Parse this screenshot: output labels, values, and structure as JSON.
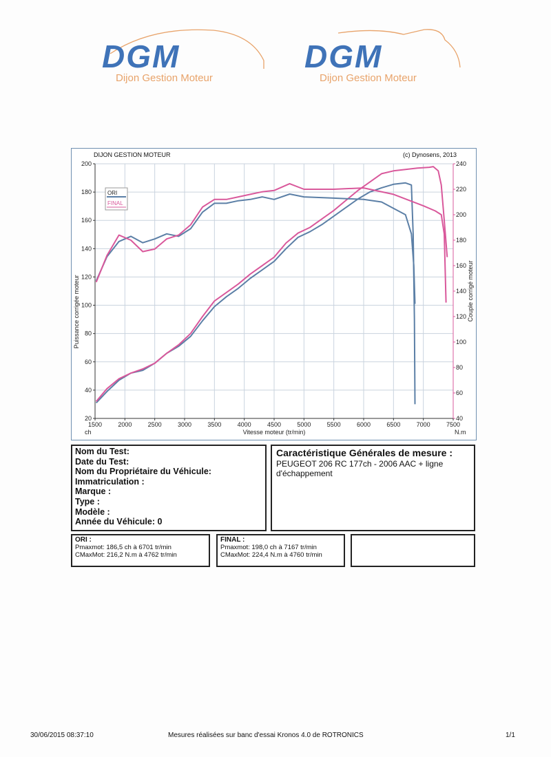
{
  "logos": [
    {
      "mark": "DGM",
      "tagline": "Dijon Gestion Moteur"
    },
    {
      "mark": "DGM",
      "tagline": "Dijon Gestion Moteur"
    }
  ],
  "colors": {
    "ori": "#5b7fa6",
    "final": "#d9589b",
    "logo_blue": "#3f73b8",
    "logo_orange": "#e8a36a",
    "grid": "#c9d3de"
  },
  "header": {
    "company": "DIJON GESTION MOTEUR",
    "copyright": "(c) Dynosens, 2013"
  },
  "chart_data": {
    "type": "line",
    "x_label": "Vitesse moteur (tr/min)",
    "x_unit_left": "ch",
    "x_unit_right": "N.m",
    "x_range": [
      1500,
      7500
    ],
    "x_ticks": [
      1500,
      2000,
      2500,
      3000,
      3500,
      4000,
      4500,
      5000,
      5500,
      6000,
      6500,
      7000,
      7500
    ],
    "y_left_label": "Puissance corrigée moteur",
    "y_left_range": [
      20,
      200
    ],
    "y_left_ticks": [
      20,
      40,
      60,
      80,
      100,
      120,
      140,
      160,
      180,
      200
    ],
    "y_right_label": "Couple corrigé moteur",
    "y_right_range": [
      40,
      240
    ],
    "y_right_ticks": [
      40,
      60,
      80,
      100,
      120,
      140,
      160,
      180,
      200,
      220,
      240
    ],
    "grid": true,
    "legend_position": "top-left",
    "legend": [
      "ORI",
      "FINAL"
    ],
    "series": [
      {
        "name": "ORI",
        "measure": "puissance",
        "axis": "left",
        "x": [
          1520,
          1700,
          1900,
          2100,
          2300,
          2500,
          2700,
          2900,
          3100,
          3300,
          3500,
          3700,
          3900,
          4100,
          4300,
          4500,
          4700,
          4900,
          5100,
          5300,
          5500,
          5700,
          5900,
          6100,
          6300,
          6500,
          6700,
          6800,
          6830,
          6850,
          6860
        ],
        "y": [
          31,
          39,
          47,
          52,
          54,
          59,
          66,
          71,
          78,
          89,
          99,
          106,
          112,
          119,
          125,
          131,
          140,
          148,
          152,
          157,
          163,
          169,
          175,
          180,
          183,
          185.5,
          186.5,
          185,
          150,
          90,
          30
        ]
      },
      {
        "name": "FINAL",
        "measure": "puissance",
        "axis": "left",
        "x": [
          1520,
          1700,
          1900,
          2100,
          2300,
          2500,
          2700,
          2900,
          3100,
          3300,
          3500,
          3700,
          3900,
          4100,
          4300,
          4500,
          4700,
          4900,
          5100,
          5300,
          5500,
          5700,
          5900,
          6100,
          6300,
          6500,
          6700,
          6900,
          7100,
          7167,
          7250,
          7300,
          7350,
          7400
        ],
        "y": [
          32,
          41,
          48,
          52,
          55,
          59,
          66,
          72,
          80,
          92,
          103,
          109,
          115,
          122,
          128,
          134,
          144,
          151,
          155,
          161,
          167,
          174,
          181,
          187,
          193,
          195,
          196,
          197,
          197.5,
          198,
          195,
          185,
          160,
          134
        ]
      },
      {
        "name": "ORI",
        "measure": "couple",
        "axis": "right",
        "x": [
          1520,
          1700,
          1900,
          2100,
          2300,
          2500,
          2700,
          2900,
          3100,
          3300,
          3500,
          3700,
          3900,
          4100,
          4300,
          4500,
          4762,
          5000,
          5500,
          6000,
          6300,
          6500,
          6700,
          6800,
          6840,
          6860
        ],
        "y": [
          148,
          167,
          179,
          183,
          178,
          181,
          185,
          183,
          189,
          202,
          209,
          209,
          211,
          212,
          214,
          212,
          216.2,
          214,
          213,
          212,
          210,
          205,
          200,
          185,
          160,
          130
        ]
      },
      {
        "name": "FINAL",
        "measure": "couple",
        "axis": "right",
        "x": [
          1520,
          1700,
          1900,
          2100,
          2300,
          2500,
          2700,
          2900,
          3100,
          3300,
          3500,
          3700,
          3900,
          4100,
          4300,
          4500,
          4760,
          5000,
          5500,
          6000,
          6500,
          7000,
          7200,
          7300,
          7350,
          7380
        ],
        "y": [
          147,
          168,
          184,
          180,
          171,
          173,
          181,
          184,
          192,
          206,
          212,
          212,
          214,
          216,
          218,
          219,
          224.4,
          220,
          220,
          221,
          216,
          207,
          203,
          200,
          185,
          131
        ]
      }
    ]
  },
  "info": {
    "lines": [
      "Nom du Test:",
      "Date du Test:",
      "Nom du Propriétaire du Véhicule:",
      "Immatriculation  :",
      "Marque  :",
      "Type  :",
      "Modèle  :",
      "Année du Véhicule: 0"
    ]
  },
  "caracteristique": {
    "title": "Caractéristique Générales de mesure :",
    "text": "PEUGEOT 206 RC 177ch - 2006 AAC + ligne d'échappement"
  },
  "results": {
    "ori": {
      "title": "ORI :",
      "pmax": "Pmaxmot: 186,5 ch à 6701 tr/min",
      "cmax": "CMaxMot: 216,2 N.m à 4762 tr/min"
    },
    "final": {
      "title": "FINAL :",
      "pmax": "Pmaxmot: 198,0 ch à 7167 tr/min",
      "cmax": "CMaxMot: 224,4 N.m à 4760 tr/min"
    }
  },
  "footer": {
    "datetime": "30/06/2015 08:37:10",
    "note": "Mesures réalisées sur banc d'essai Kronos 4.0 de ROTRONICS",
    "page": "1/1"
  }
}
